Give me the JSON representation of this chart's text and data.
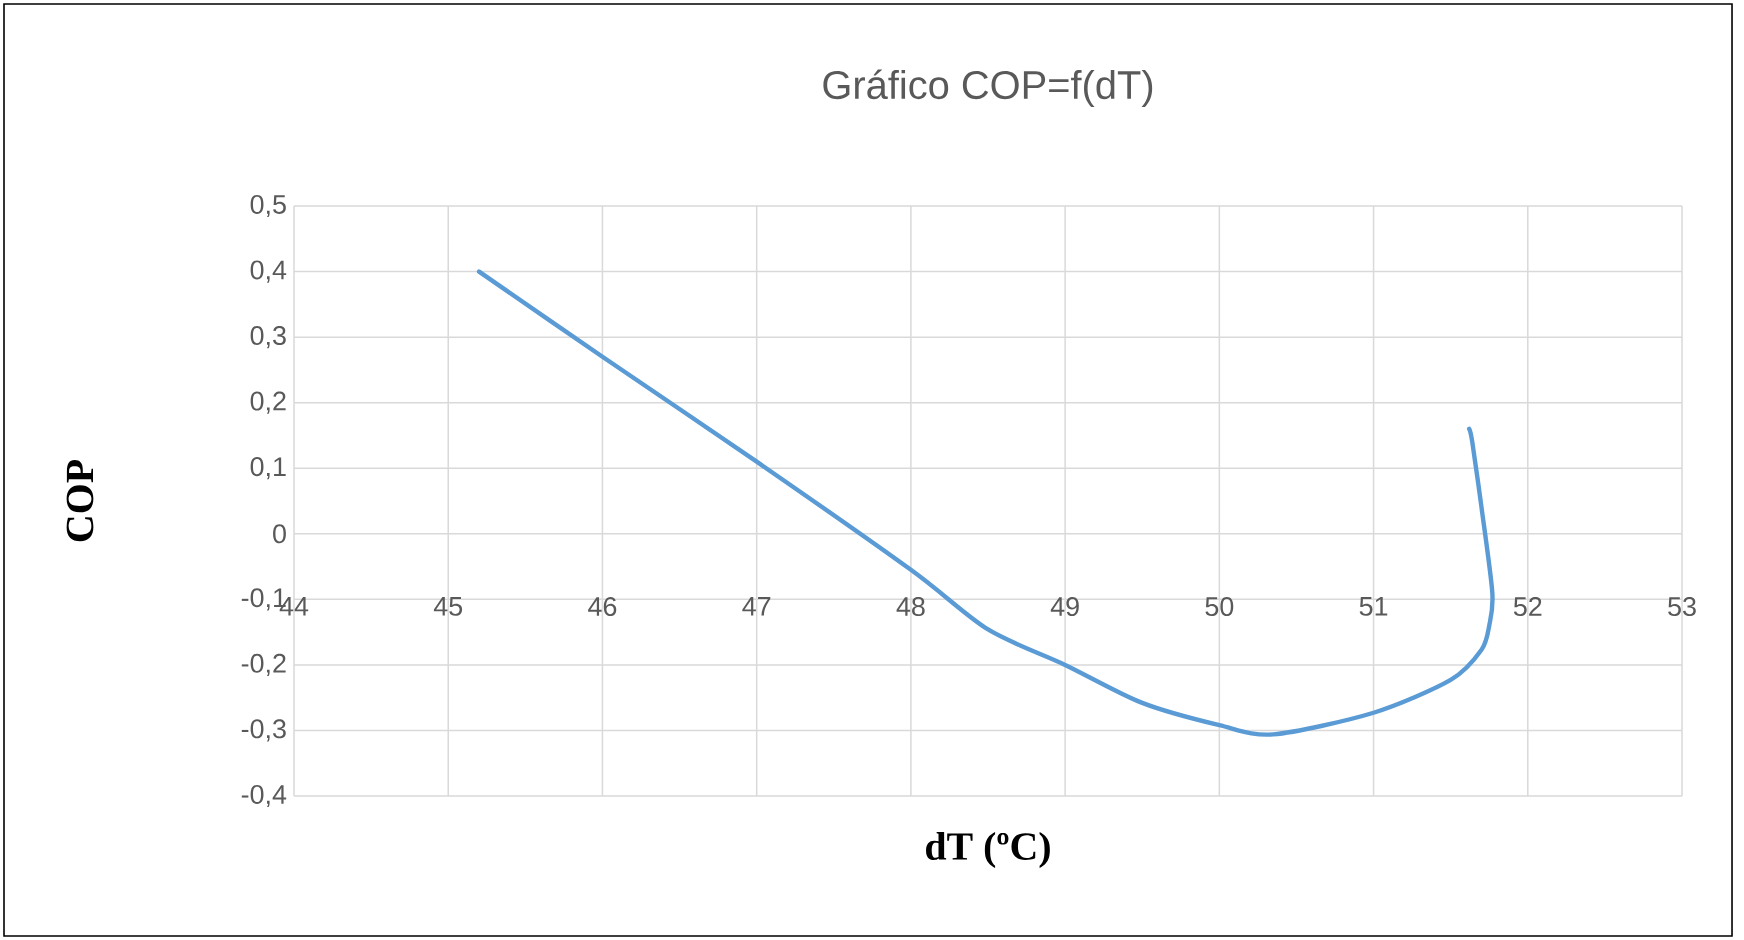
{
  "chart_data": {
    "type": "line",
    "title": "Gráfico COP=f(dT)",
    "xlabel": "dT (ºC)",
    "ylabel": "COP",
    "x": [
      45.2,
      46,
      47,
      48,
      48.5,
      49,
      49.5,
      50,
      50.35,
      51,
      51.5,
      51.7,
      51.75,
      51.77,
      51.7,
      51.64,
      51.62
    ],
    "series": [
      {
        "color": "#5b9bd5",
        "values": [
          0.4,
          0.27,
          0.11,
          -0.055,
          -0.146,
          -0.2,
          -0.258,
          -0.292,
          -0.306,
          -0.273,
          -0.223,
          -0.177,
          -0.14,
          -0.09,
          0.04,
          0.14,
          0.16
        ]
      }
    ],
    "xlim": [
      44,
      53
    ],
    "xticks": [
      44,
      45,
      46,
      47,
      48,
      49,
      50,
      51,
      52,
      53
    ],
    "ylim": [
      -0.4,
      0.5
    ],
    "yticks": [
      {
        "value": -0.4,
        "label": "-0,4"
      },
      {
        "value": -0.3,
        "label": "-0,3"
      },
      {
        "value": -0.2,
        "label": "-0,2"
      },
      {
        "value": -0.1,
        "label": "-0,1"
      },
      {
        "value": 0,
        "label": "0"
      },
      {
        "value": 0.1,
        "label": "0,1"
      },
      {
        "value": 0.2,
        "label": "0,2"
      },
      {
        "value": 0.3,
        "label": "0,3"
      },
      {
        "value": 0.4,
        "label": "0,4"
      },
      {
        "value": 0.5,
        "label": "0,5"
      }
    ],
    "grid": true,
    "legend": false,
    "marker": "none",
    "line_style": "solid"
  }
}
